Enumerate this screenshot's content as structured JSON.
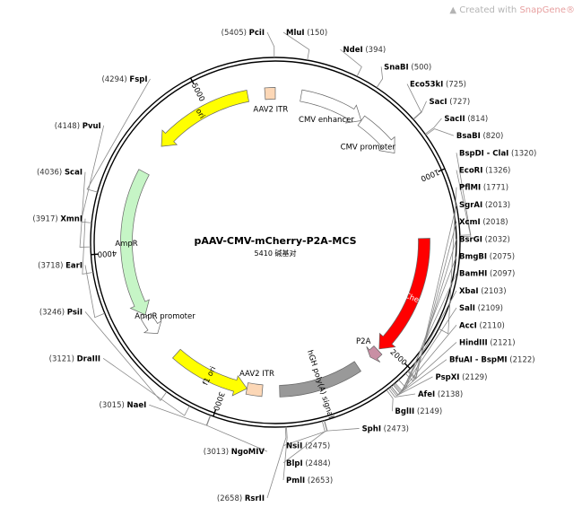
{
  "watermark": {
    "prefix": "Created with",
    "brand": "SnapGene",
    "mark": "®"
  },
  "plasmid": {
    "name": "pAAV-CMV-mCherry-P2A-MCS",
    "length_text": "5410 碱基对",
    "total_bp": 5410
  },
  "ticks": [
    {
      "bp": 1000,
      "label": "1000"
    },
    {
      "bp": 2000,
      "label": "2000"
    },
    {
      "bp": 3000,
      "label": "3000"
    },
    {
      "bp": 4000,
      "label": "4000"
    },
    {
      "bp": 5000,
      "label": "5000"
    }
  ],
  "features": [
    {
      "name": "ori",
      "label": "ori",
      "start": 4660,
      "end": 5250,
      "dir": -1,
      "color": "#ffff00",
      "ring": 0
    },
    {
      "name": "aav2-itr-left",
      "label": "AAV2 ITR",
      "start": 5350,
      "end": 5410,
      "dir": 0,
      "color": "#fcd7b6",
      "ring": 0
    },
    {
      "name": "cmv-enhancer",
      "label": "CMV enhancer",
      "start": 150,
      "end": 530,
      "dir": 1,
      "color": "#ffffff",
      "ring": 0
    },
    {
      "name": "cmv-promoter",
      "label": "CMV promoter",
      "start": 530,
      "end": 800,
      "dir": 1,
      "color": "#ffffff",
      "ring": 0
    },
    {
      "name": "mcherry",
      "label": "mCherry",
      "start": 1330,
      "end": 2040,
      "dir": 1,
      "color": "#ff0000",
      "ring": 0
    },
    {
      "name": "p2a",
      "label": "P2A",
      "start": 2050,
      "end": 2110,
      "dir": 1,
      "color": "#c98fa4",
      "ring": 0
    },
    {
      "name": "hgh-polya",
      "label": "hGH poly(A) signal",
      "start": 2200,
      "end": 2680,
      "dir": 0,
      "color": "#999999",
      "ring": 0
    },
    {
      "name": "aav2-itr-right",
      "label": "AAV2 ITR",
      "start": 2780,
      "end": 2870,
      "dir": 0,
      "color": "#fcd7b6",
      "ring": 0
    },
    {
      "name": "f1-ori",
      "label": "f1 ori",
      "start": 2870,
      "end": 3330,
      "dir": -1,
      "color": "#ffff00",
      "ring": 0
    },
    {
      "name": "ampr-promoter",
      "label": "AmpR promoter",
      "start": 3490,
      "end": 3610,
      "dir": -1,
      "color": "#ffffff",
      "ring": 0
    },
    {
      "name": "ampr",
      "label": "AmpR",
      "start": 3620,
      "end": 4480,
      "dir": -1,
      "color": "#c6f5c6",
      "ring": 0
    }
  ],
  "sites": [
    {
      "bp": 5405,
      "name": "PciI",
      "pos": "(5405)",
      "side": "left"
    },
    {
      "bp": 150,
      "name": "MluI",
      "pos": "(150)",
      "side": "right"
    },
    {
      "bp": 394,
      "name": "NdeI",
      "pos": "(394)",
      "side": "right"
    },
    {
      "bp": 500,
      "name": "SnaBI",
      "pos": "(500)",
      "side": "right"
    },
    {
      "bp": 725,
      "name": "Eco53kI",
      "pos": "(725)",
      "side": "right"
    },
    {
      "bp": 727,
      "name": "SacI",
      "pos": "(727)",
      "side": "right"
    },
    {
      "bp": 814,
      "name": "SacII",
      "pos": "(814)",
      "side": "right"
    },
    {
      "bp": 820,
      "name": "BsaBI",
      "pos": "(820)",
      "side": "right"
    },
    {
      "bp": 1320,
      "name": "BspDI - ClaI",
      "pos": "(1320)",
      "side": "right"
    },
    {
      "bp": 1326,
      "name": "EcoRI",
      "pos": "(1326)",
      "side": "right"
    },
    {
      "bp": 1771,
      "name": "PflMI",
      "pos": "(1771)",
      "side": "right"
    },
    {
      "bp": 2013,
      "name": "SgrAI",
      "pos": "(2013)",
      "side": "right"
    },
    {
      "bp": 2018,
      "name": "XcmI",
      "pos": "(2018)",
      "side": "right"
    },
    {
      "bp": 2032,
      "name": "BsrGI",
      "pos": "(2032)",
      "side": "right"
    },
    {
      "bp": 2075,
      "name": "BmgBI",
      "pos": "(2075)",
      "side": "right"
    },
    {
      "bp": 2097,
      "name": "BamHI",
      "pos": "(2097)",
      "side": "right"
    },
    {
      "bp": 2103,
      "name": "XbaI",
      "pos": "(2103)",
      "side": "right"
    },
    {
      "bp": 2109,
      "name": "SalI",
      "pos": "(2109)",
      "side": "right"
    },
    {
      "bp": 2110,
      "name": "AccI",
      "pos": "(2110)",
      "side": "right"
    },
    {
      "bp": 2121,
      "name": "HindIII",
      "pos": "(2121)",
      "side": "right"
    },
    {
      "bp": 2122,
      "name": "BfuAI - BspMI",
      "pos": "(2122)",
      "side": "right"
    },
    {
      "bp": 2129,
      "name": "PspXI",
      "pos": "(2129)",
      "side": "right"
    },
    {
      "bp": 2138,
      "name": "AfeI",
      "pos": "(2138)",
      "side": "right"
    },
    {
      "bp": 2149,
      "name": "BglII",
      "pos": "(2149)",
      "side": "right"
    },
    {
      "bp": 2473,
      "name": "SphI",
      "pos": "(2473)",
      "side": "right"
    },
    {
      "bp": 2475,
      "name": "NsiI",
      "pos": "(2475)",
      "side": "right"
    },
    {
      "bp": 2484,
      "name": "BlpI",
      "pos": "(2484)",
      "side": "right"
    },
    {
      "bp": 2653,
      "name": "PmlI",
      "pos": "(2653)",
      "side": "right"
    },
    {
      "bp": 2658,
      "name": "RsrII",
      "pos": "(2658)",
      "side": "left"
    },
    {
      "bp": 3013,
      "name": "NgoMIV",
      "pos": "(3013)",
      "side": "left"
    },
    {
      "bp": 3015,
      "name": "NaeI",
      "pos": "(3015)",
      "side": "left"
    },
    {
      "bp": 3121,
      "name": "DraIII",
      "pos": "(3121)",
      "side": "left"
    },
    {
      "bp": 3246,
      "name": "PsiI",
      "pos": "(3246)",
      "side": "left"
    },
    {
      "bp": 3718,
      "name": "EarI",
      "pos": "(3718)",
      "side": "left"
    },
    {
      "bp": 3917,
      "name": "XmnI",
      "pos": "(3917)",
      "side": "left"
    },
    {
      "bp": 4036,
      "name": "ScaI",
      "pos": "(4036)",
      "side": "left"
    },
    {
      "bp": 4148,
      "name": "PvuI",
      "pos": "(4148)",
      "side": "left"
    },
    {
      "bp": 4294,
      "name": "FspI",
      "pos": "(4294)",
      "side": "left"
    }
  ]
}
